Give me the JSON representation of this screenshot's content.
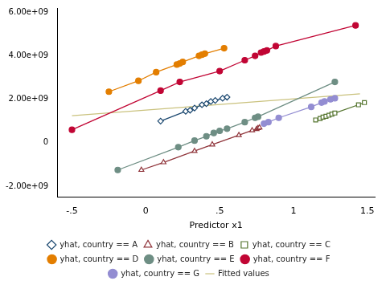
{
  "chart_data": {
    "type": "scatter",
    "x_label": "Predictor x1",
    "xlim": [
      -0.6,
      1.55
    ],
    "xticks": [
      {
        "value": -0.5,
        "label": "-.5"
      },
      0,
      {
        "value": 0.5,
        "label": ".5"
      },
      1,
      {
        "value": 1.5,
        "label": "1.5"
      }
    ],
    "ylim": [
      -2500000000,
      6200000000
    ],
    "yticks": [
      {
        "value": -2000000000,
        "label": "-2.00e+09"
      },
      0,
      {
        "value": 2000000000,
        "label": "2.00e+09"
      },
      {
        "value": 4000000000,
        "label": "4.00e+09"
      },
      {
        "value": 6000000000,
        "label": "6.00e+09"
      }
    ],
    "grid": false,
    "legend": "bottom",
    "series": [
      {
        "name": "yhat, country == A",
        "color": "#1a476f",
        "marker": "diamond_hollow",
        "line_style": "solid",
        "x": [
          0.1,
          0.27,
          0.3,
          0.33,
          0.38,
          0.41,
          0.44,
          0.47,
          0.52,
          0.55
        ],
        "values": [
          1000000000,
          1450000000,
          1500000000,
          1600000000,
          1750000000,
          1800000000,
          1900000000,
          1950000000,
          2050000000,
          2100000000
        ]
      },
      {
        "name": "yhat, country == B",
        "color": "#90353b",
        "marker": "triangle_hollow",
        "line_style": "solid",
        "x": [
          -0.03,
          0.12,
          0.33,
          0.45,
          0.63,
          0.72,
          0.75,
          0.76,
          0.77
        ],
        "values": [
          -1250000000,
          -900000000,
          -380000000,
          -80000000,
          350000000,
          570000000,
          630000000,
          670000000,
          700000000
        ]
      },
      {
        "name": "yhat, country == C",
        "color": "#55752f",
        "marker": "square_hollow",
        "line_style": "solid",
        "x": [
          1.15,
          1.18,
          1.2,
          1.22,
          1.24,
          1.26,
          1.28,
          1.44,
          1.48
        ],
        "values": [
          1050000000,
          1120000000,
          1180000000,
          1220000000,
          1270000000,
          1320000000,
          1370000000,
          1750000000,
          1850000000
        ]
      },
      {
        "name": "yhat, country == D",
        "color": "#e37e00",
        "marker": "circle",
        "line_style": "solid",
        "x": [
          -0.25,
          -0.05,
          0.07,
          0.21,
          0.23,
          0.25,
          0.36,
          0.38,
          0.4,
          0.53
        ],
        "values": [
          2350000000,
          2850000000,
          3250000000,
          3600000000,
          3650000000,
          3720000000,
          4000000000,
          4050000000,
          4100000000,
          4350000000
        ]
      },
      {
        "name": "yhat, country == E",
        "color": "#6e8e84",
        "marker": "circle",
        "line_style": "solid",
        "x": [
          -0.19,
          0.22,
          0.33,
          0.41,
          0.46,
          0.5,
          0.55,
          0.67,
          0.74,
          0.76,
          1.28
        ],
        "values": [
          -1250000000,
          -200000000,
          100000000,
          300000000,
          450000000,
          550000000,
          650000000,
          950000000,
          1150000000,
          1200000000,
          2800000000
        ]
      },
      {
        "name": "yhat, country == F",
        "color": "#c10534",
        "marker": "circle",
        "line_style": "solid",
        "x": [
          -0.5,
          0.1,
          0.23,
          0.5,
          0.67,
          0.74,
          0.78,
          0.8,
          0.82,
          0.88,
          1.42
        ],
        "values": [
          600000000,
          2400000000,
          2800000000,
          3300000000,
          3800000000,
          4000000000,
          4150000000,
          4200000000,
          4250000000,
          4450000000,
          5400000000
        ]
      },
      {
        "name": "yhat, country == G",
        "color": "#938dd2",
        "marker": "circle",
        "line_style": "solid",
        "x": [
          0.8,
          0.83,
          0.9,
          1.12,
          1.19,
          1.21,
          1.25,
          1.28
        ],
        "values": [
          880000000,
          950000000,
          1150000000,
          1650000000,
          1850000000,
          1900000000,
          2000000000,
          2050000000
        ]
      },
      {
        "name": "Fitted values",
        "color": "#cac27e",
        "marker": "none",
        "line_style": "solid",
        "x": [
          -0.5,
          1.45
        ],
        "values": [
          1250000000,
          2250000000
        ]
      }
    ]
  }
}
